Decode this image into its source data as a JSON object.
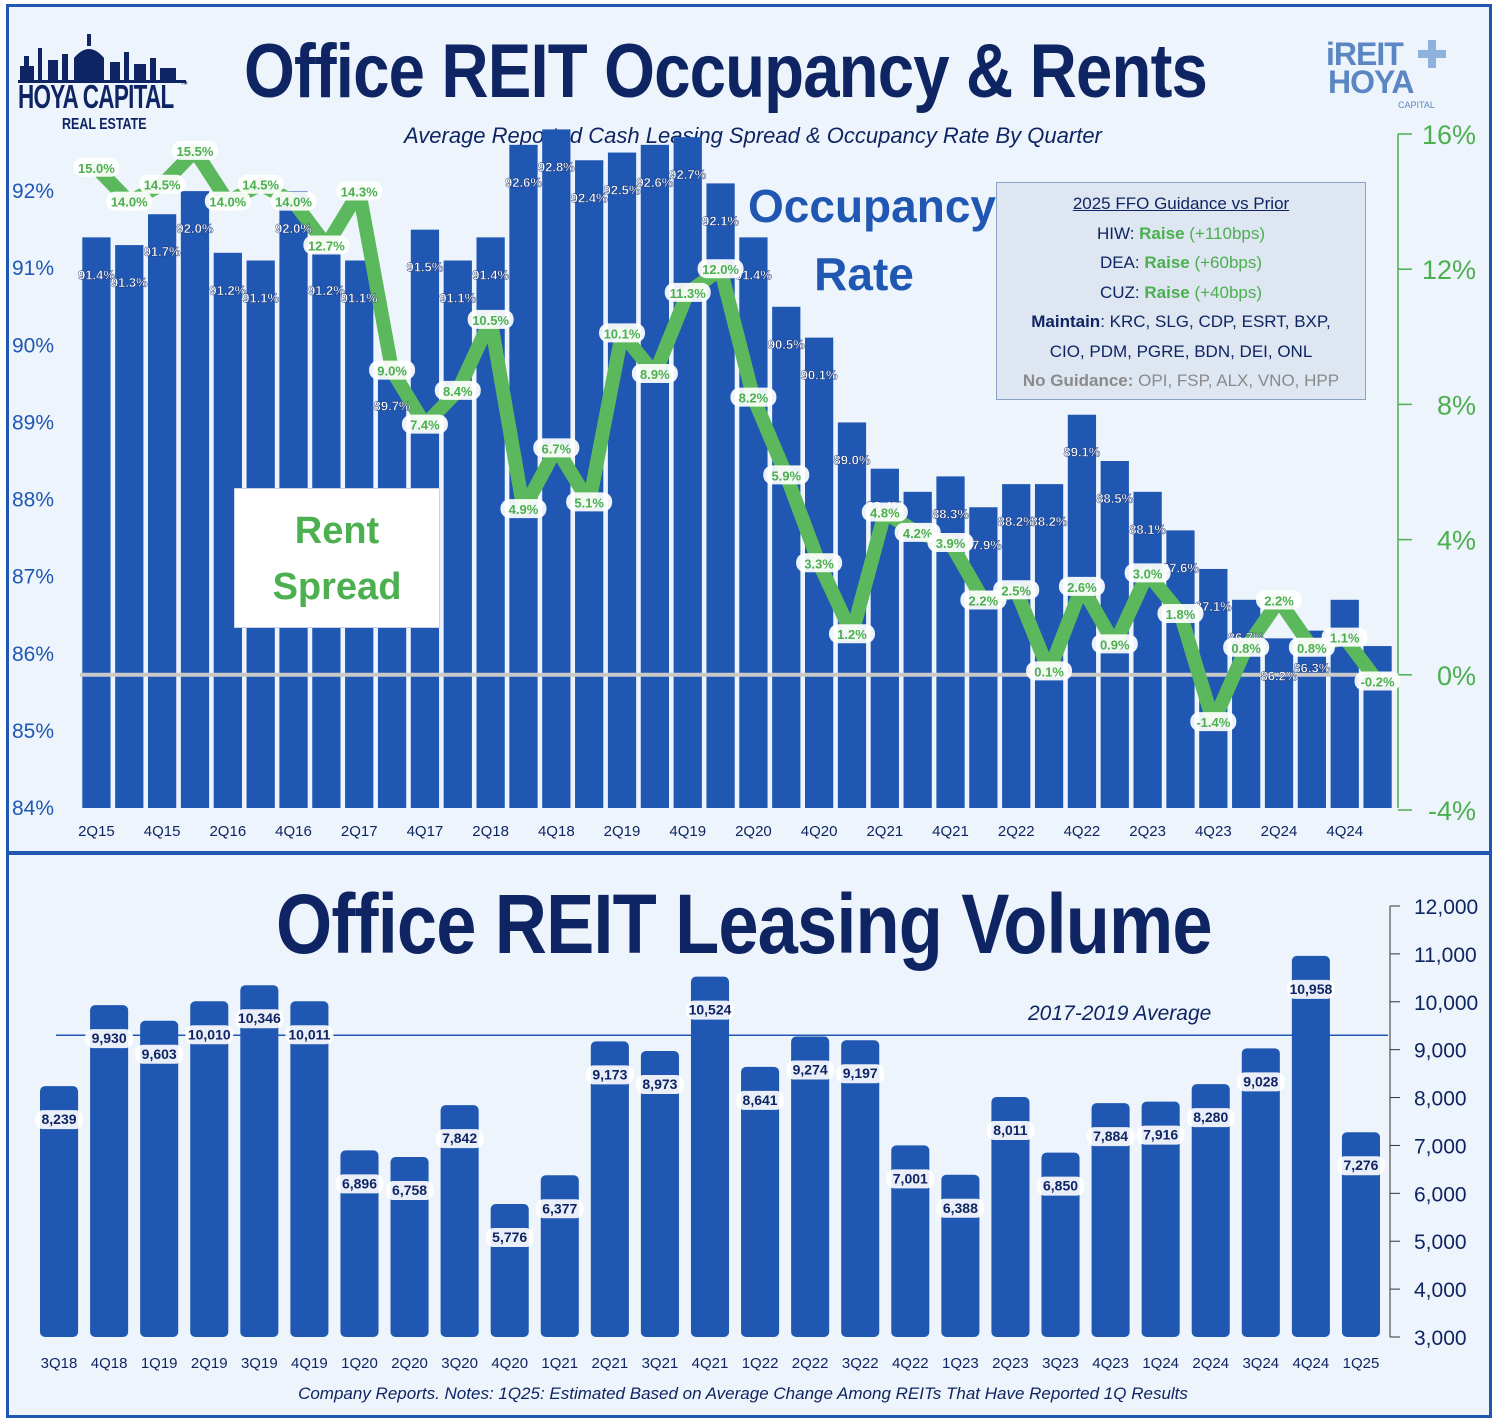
{
  "header": {
    "logo_left": {
      "line1": "HOYA CAPITAL",
      "line2": "REAL ESTATE",
      "tm": "™"
    },
    "logo_right": {
      "line1": "iREIT",
      "line2": "HOYA",
      "line3": "CAPITAL"
    }
  },
  "top_chart": {
    "title": "Office REIT Occupancy & Rents",
    "subtitle": "Average Reported Cash Leasing Spread & Occupancy Rate By Quarter",
    "occupancy_label_line1": "Occupancy",
    "occupancy_label_line2": "Rate",
    "rent_label_line1": "Rent",
    "rent_label_line2": "Spread"
  },
  "guidance": {
    "title": "2025 FFO Guidance vs Prior",
    "rows": [
      {
        "ticker": "HIW:",
        "action": "Raise",
        "detail": "(+110bps)"
      },
      {
        "ticker": "DEA:",
        "action": "Raise",
        "detail": "(+60bps)"
      },
      {
        "ticker": "CUZ:",
        "action": "Raise",
        "detail": "(+40bps)"
      }
    ],
    "maintain_label": "Maintain",
    "maintain_line1": ": KRC, SLG, CDP, ESRT, BXP,",
    "maintain_line2": "CIO, PDM, PGRE, BDN, DEI, ONL",
    "no_guidance_label": "No Guidance:",
    "no_guidance_list": "OPI, FSP, ALX, VNO, HPP"
  },
  "bottom_chart": {
    "title": "Office REIT Leasing Volume",
    "average_label": "2017-2019 Average"
  },
  "footnote": "Company Reports. Notes: 1Q25: Estimated Based on Average Change Among REITs That Have Reported 1Q Results",
  "colors": {
    "bar": "#1f57b3",
    "line": "#5cb85c",
    "title": "#0f2563",
    "accent_green": "#4caf50",
    "panel_bg": "#edf4fb"
  },
  "chart_data": [
    {
      "type": "bar",
      "name_ref": "top_chart",
      "categories": [
        "2Q15",
        "3Q15",
        "4Q15",
        "1Q16",
        "2Q16",
        "3Q16",
        "4Q16",
        "1Q17",
        "2Q17",
        "3Q17",
        "4Q17",
        "1Q18",
        "2Q18",
        "3Q18",
        "4Q18",
        "1Q19",
        "2Q19",
        "3Q19",
        "4Q19",
        "1Q20",
        "2Q20",
        "3Q20",
        "4Q20",
        "1Q21",
        "2Q21",
        "3Q21",
        "4Q21",
        "1Q22",
        "2Q22",
        "3Q22",
        "4Q22",
        "1Q23",
        "2Q23",
        "3Q23",
        "4Q23",
        "1Q24",
        "2Q24",
        "3Q24",
        "4Q24",
        "1Q25"
      ],
      "x_tick_labels": [
        "2Q15",
        "4Q15",
        "2Q16",
        "4Q16",
        "2Q17",
        "4Q17",
        "2Q18",
        "4Q18",
        "2Q19",
        "4Q19",
        "2Q20",
        "4Q20",
        "2Q21",
        "4Q21",
        "2Q22",
        "4Q22",
        "2Q23",
        "4Q23",
        "2Q24",
        "4Q24"
      ],
      "series": [
        {
          "name": "Occupancy Rate",
          "type": "bar",
          "axis": "left",
          "values": [
            91.4,
            91.3,
            91.7,
            92.0,
            91.2,
            91.1,
            92.0,
            91.2,
            91.1,
            89.7,
            91.5,
            91.1,
            91.4,
            92.6,
            92.8,
            92.4,
            92.5,
            92.6,
            92.7,
            92.1,
            91.4,
            90.5,
            90.1,
            89.0,
            88.4,
            88.1,
            88.3,
            87.9,
            88.2,
            88.2,
            89.1,
            88.5,
            88.1,
            87.6,
            87.1,
            86.7,
            86.2,
            86.3,
            86.7,
            86.1
          ],
          "labels": [
            "91.4%",
            "91.3%",
            "91.7%",
            "92.0%",
            "91.2%",
            "91.1%",
            "92.0%",
            "91.2%",
            "91.1%",
            "89.7%",
            "91.5%",
            "91.1%",
            "91.4%",
            "92.6%",
            "92.8%",
            "92.4%",
            "92.5%",
            "92.6%",
            "92.7%",
            "92.1%",
            "91.4%",
            "90.5%",
            "90.1%",
            "89.0%",
            "88.4%",
            "88.1%",
            "88.3%",
            "87.9%",
            "88.2%",
            "88.2%",
            "89.1%",
            "88.5%",
            "88.1%",
            "87.6%",
            "87.1%",
            "86.7%",
            "86.2%",
            "86.3%",
            "86.7%",
            "86.1%"
          ]
        },
        {
          "name": "Rent Spread",
          "type": "line",
          "axis": "right",
          "values": [
            15.0,
            14.0,
            14.5,
            15.5,
            14.0,
            14.5,
            14.0,
            12.7,
            14.3,
            9.0,
            7.4,
            8.4,
            10.5,
            4.9,
            6.7,
            5.1,
            10.1,
            8.9,
            11.3,
            12.0,
            8.2,
            5.9,
            3.3,
            1.2,
            4.8,
            4.2,
            3.9,
            2.2,
            2.5,
            0.1,
            2.6,
            0.9,
            3.0,
            1.8,
            -1.4,
            0.8,
            2.2,
            0.8,
            1.1,
            -0.2
          ],
          "labels": [
            "15.0%",
            "14.0%",
            "14.5%",
            "15.5%",
            "14.0%",
            "14.5%",
            "14.0%",
            "12.7%",
            "14.3%",
            "9.0%",
            "7.4%",
            "8.4%",
            "10.5%",
            "4.9%",
            "6.7%",
            "5.1%",
            "10.1%",
            "8.9%",
            "11.3%",
            "12.0%",
            "8.2%",
            "5.9%",
            "3.3%",
            "1.2%",
            "4.8%",
            "4.2%",
            "3.9%",
            "2.2%",
            "2.5%",
            "0.1%",
            "2.6%",
            "0.9%",
            "3.0%",
            "1.8%",
            "-1.4%",
            "0.8%",
            "2.2%",
            "0.8%",
            "1.1%",
            "-0.2%"
          ]
        }
      ],
      "y_left": {
        "ylim": [
          84,
          93
        ],
        "ticks": [
          "84%",
          "85%",
          "86%",
          "87%",
          "88%",
          "89%",
          "90%",
          "91%",
          "92%"
        ]
      },
      "y_right": {
        "ylim": [
          -4,
          16
        ],
        "ticks": [
          "-4%",
          "0%",
          "4%",
          "8%",
          "12%",
          "16%"
        ]
      },
      "grid": false
    },
    {
      "type": "bar",
      "name_ref": "bottom_chart",
      "categories": [
        "3Q18",
        "4Q18",
        "1Q19",
        "2Q19",
        "3Q19",
        "4Q19",
        "1Q20",
        "2Q20",
        "3Q20",
        "4Q20",
        "1Q21",
        "2Q21",
        "3Q21",
        "4Q21",
        "1Q22",
        "2Q22",
        "3Q22",
        "4Q22",
        "1Q23",
        "2Q23",
        "3Q23",
        "4Q23",
        "1Q24",
        "2Q24",
        "3Q24",
        "4Q24",
        "1Q25"
      ],
      "values": [
        8239,
        9930,
        9603,
        10010,
        10346,
        10011,
        6896,
        6758,
        7842,
        5776,
        6377,
        9173,
        8973,
        10524,
        8641,
        9274,
        9197,
        7001,
        6388,
        8011,
        6850,
        7884,
        7916,
        8280,
        9028,
        10958,
        7276
      ],
      "labels": [
        "8,239",
        "9,930",
        "9,603",
        "10,010",
        "10,346",
        "10,011",
        "6,896",
        "6,758",
        "7,842",
        "5,776",
        "6,377",
        "9,173",
        "8,973",
        "10,524",
        "8,641",
        "9,274",
        "9,197",
        "7,001",
        "6,388",
        "8,011",
        "6,850",
        "7,884",
        "7,916",
        "8,280",
        "9,028",
        "10,958",
        "7,276"
      ],
      "reference_line": {
        "label": "2017-2019 Average",
        "value": 9300
      },
      "ylim": [
        3000,
        12000
      ],
      "y_ticks": [
        "3,000",
        "4,000",
        "5,000",
        "6,000",
        "7,000",
        "8,000",
        "9,000",
        "10,000",
        "11,000",
        "12,000"
      ],
      "grid": false
    }
  ]
}
